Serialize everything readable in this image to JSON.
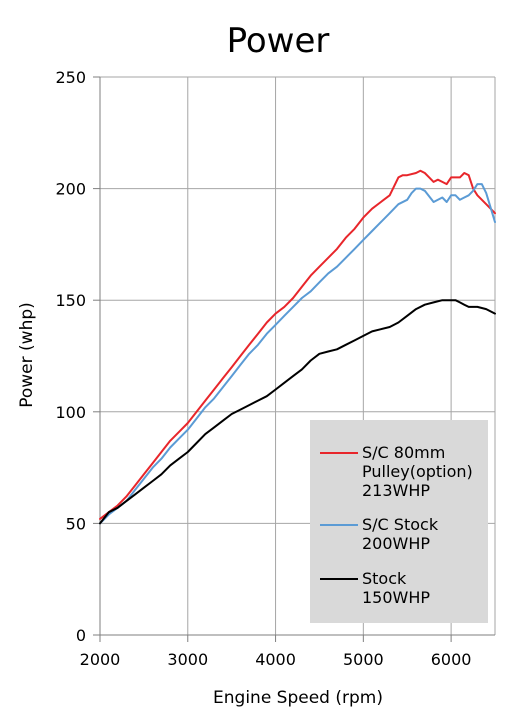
{
  "chart_data": {
    "type": "line",
    "title": "Power",
    "xlabel": "Engine Speed (rpm)",
    "ylabel": "Power (whp)",
    "xlim": [
      2000,
      6500
    ],
    "ylim": [
      0,
      250
    ],
    "xticks": [
      2000,
      3000,
      4000,
      5000,
      6000
    ],
    "yticks": [
      0,
      50,
      100,
      150,
      200,
      250
    ],
    "grid": true,
    "legend_position": "bottom-right",
    "legend_background": "#d9d9d9",
    "series": [
      {
        "name": "S/C 80mm Pulley(option) 213WHP",
        "legend_lines": [
          "S/C 80mm",
          "Pulley(option)",
          "213WHP"
        ],
        "color": "#e8262b",
        "x": [
          2000,
          2100,
          2200,
          2300,
          2400,
          2500,
          2600,
          2700,
          2800,
          2900,
          3000,
          3100,
          3200,
          3300,
          3400,
          3500,
          3600,
          3700,
          3800,
          3900,
          4000,
          4100,
          4200,
          4300,
          4400,
          4500,
          4600,
          4700,
          4800,
          4900,
          5000,
          5100,
          5200,
          5300,
          5400,
          5450,
          5500,
          5600,
          5650,
          5700,
          5750,
          5800,
          5850,
          5900,
          5950,
          6000,
          6100,
          6150,
          6200,
          6250,
          6300,
          6400,
          6500
        ],
        "y": [
          52,
          55,
          58,
          62,
          67,
          72,
          77,
          82,
          87,
          91,
          95,
          100,
          105,
          110,
          115,
          120,
          125,
          130,
          135,
          140,
          144,
          147,
          151,
          156,
          161,
          165,
          169,
          173,
          178,
          182,
          187,
          191,
          194,
          197,
          205,
          206,
          206,
          207,
          208,
          207,
          205,
          203,
          204,
          203,
          202,
          205,
          205,
          207,
          206,
          200,
          197,
          193,
          189
        ]
      },
      {
        "name": "S/C Stock 200WHP",
        "legend_lines": [
          "S/C Stock",
          "200WHP"
        ],
        "color": "#5b9bd5",
        "x": [
          2000,
          2100,
          2200,
          2300,
          2400,
          2500,
          2600,
          2700,
          2800,
          2900,
          3000,
          3100,
          3200,
          3300,
          3400,
          3500,
          3600,
          3700,
          3800,
          3900,
          4000,
          4100,
          4200,
          4300,
          4400,
          4500,
          4600,
          4700,
          4800,
          4900,
          5000,
          5100,
          5200,
          5300,
          5400,
          5500,
          5550,
          5600,
          5650,
          5700,
          5800,
          5900,
          5950,
          6000,
          6050,
          6100,
          6150,
          6200,
          6250,
          6300,
          6350,
          6400,
          6500
        ],
        "y": [
          50,
          54,
          57,
          60,
          65,
          70,
          75,
          79,
          84,
          88,
          92,
          97,
          102,
          106,
          111,
          116,
          121,
          126,
          130,
          135,
          139,
          143,
          147,
          151,
          154,
          158,
          162,
          165,
          169,
          173,
          177,
          181,
          185,
          189,
          193,
          195,
          198,
          200,
          200,
          199,
          194,
          196,
          194,
          197,
          197,
          195,
          196,
          197,
          199,
          202,
          202,
          198,
          185
        ]
      },
      {
        "name": "Stock 150WHP",
        "legend_lines": [
          "Stock",
          "150WHP"
        ],
        "color": "#000000",
        "x": [
          2000,
          2100,
          2200,
          2300,
          2400,
          2500,
          2600,
          2700,
          2800,
          2900,
          3000,
          3100,
          3200,
          3300,
          3400,
          3500,
          3600,
          3700,
          3800,
          3900,
          4000,
          4100,
          4200,
          4300,
          4400,
          4500,
          4600,
          4700,
          4800,
          4900,
          5000,
          5100,
          5200,
          5300,
          5400,
          5500,
          5600,
          5700,
          5800,
          5900,
          5950,
          6000,
          6050,
          6100,
          6150,
          6200,
          6300,
          6400,
          6500
        ],
        "y": [
          50,
          55,
          57,
          60,
          63,
          66,
          69,
          72,
          76,
          79,
          82,
          86,
          90,
          93,
          96,
          99,
          101,
          103,
          105,
          107,
          110,
          113,
          116,
          119,
          123,
          126,
          127,
          128,
          130,
          132,
          134,
          136,
          137,
          138,
          140,
          143,
          146,
          148,
          149,
          150,
          150,
          150,
          150,
          149,
          148,
          147,
          147,
          146,
          144
        ]
      }
    ]
  }
}
